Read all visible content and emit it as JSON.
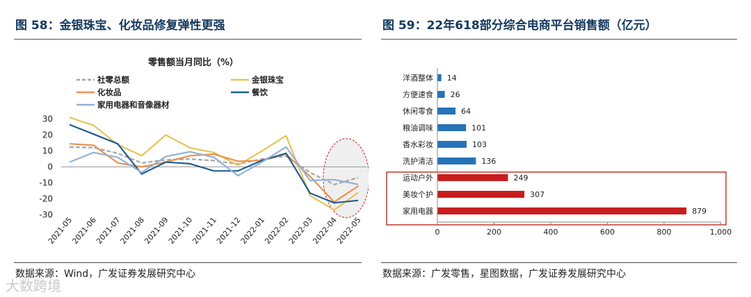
{
  "figures": {
    "left": {
      "title": "图 58：金银珠宝、化妆品修复弹性更强",
      "source": "数据来源：Wind，广发证券发展研究中心"
    },
    "right": {
      "title": "图 59：22年618部分综合电商平台销售额（亿元）",
      "source": "数据来源：广发零售，星图数据，广发证券发展研究中心"
    }
  },
  "watermark": "大数跨境",
  "chart_data": [
    {
      "type": "line",
      "title": "零售额当月同比（%）",
      "categories": [
        "2021-05",
        "2021-06",
        "2021-07",
        "2021-08",
        "2021-09",
        "2021-10",
        "2021-11",
        "2021-12",
        "2022-01",
        "2022-02",
        "2022-03",
        "2022-04",
        "2022-05"
      ],
      "ylim": [
        -30,
        30
      ],
      "yticks": [
        30,
        20,
        10,
        0,
        -10,
        -20,
        -30
      ],
      "legend_position": "top",
      "series": [
        {
          "name": "社零总额",
          "color": "#a6a6a6",
          "dash": true,
          "values": [
            12.4,
            12.1,
            8.5,
            2.5,
            4.4,
            4.9,
            3.9,
            1.7,
            5.0,
            6.7,
            -3.5,
            -11.1,
            -6.7
          ]
        },
        {
          "name": "金银珠宝",
          "color": "#e8c355",
          "dash": false,
          "values": [
            31,
            26,
            14,
            7,
            20,
            12,
            9,
            1,
            10,
            19.5,
            -18,
            -27,
            -16
          ]
        },
        {
          "name": "化妆品",
          "color": "#ec9150",
          "dash": false,
          "values": [
            14.5,
            13.5,
            2.5,
            0,
            3,
            7,
            8,
            3.5,
            4,
            8,
            -6,
            -22,
            -12
          ]
        },
        {
          "name": "餐饮",
          "color": "#1d5f8f",
          "dash": false,
          "values": [
            26.5,
            20.5,
            14.5,
            -4.5,
            3,
            2,
            -2.5,
            -2.5,
            4,
            8.5,
            -16.5,
            -22.5,
            -21
          ]
        },
        {
          "name": "家用电器和音像器材",
          "color": "#8fb2d8",
          "dash": false,
          "values": [
            3,
            9,
            6,
            -3.5,
            6.5,
            9.5,
            6,
            -5.5,
            3,
            12.5,
            -8.5,
            -8,
            -11
          ]
        }
      ],
      "annotation": "highlight-2022-04-to-2022-05"
    },
    {
      "type": "bar",
      "orientation": "horizontal",
      "categories": [
        "洋酒整体",
        "方便速食",
        "休闲零食",
        "粮油调味",
        "香水彩妆",
        "洗护清洁",
        "运动户外",
        "美妆个护",
        "家用电器"
      ],
      "values": [
        14,
        26,
        64,
        101,
        103,
        136,
        249,
        307,
        879
      ],
      "colors": [
        "#2673b8",
        "#2673b8",
        "#2673b8",
        "#2673b8",
        "#2673b8",
        "#2673b8",
        "#c81d1d",
        "#c81d1d",
        "#c81d1d"
      ],
      "xlim": [
        0,
        1000
      ],
      "xticks": [
        "0",
        "200",
        "400",
        "600",
        "800",
        "1,000"
      ],
      "highlight": [
        "运动户外",
        "美妆个护",
        "家用电器"
      ]
    }
  ]
}
